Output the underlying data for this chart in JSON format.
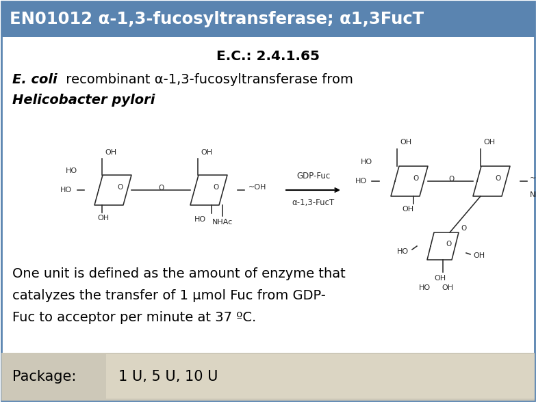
{
  "title": "EN01012 α-1,3-fucosyltransferase; α1,3FucT",
  "title_bg": "#5a84b0",
  "title_color": "#ffffff",
  "ec_number": "E.C.: 2.4.1.65",
  "description_italic": "E. coli",
  "description_rest": " recombinant α-1,3-fucosyltransferase from",
  "description_line2": "Helicobacter pylori",
  "unit_line1": "One unit is defined as the amount of enzyme that",
  "unit_line2": "catalyzes the transfer of 1 μmol Fuc from GDP-",
  "unit_line3": "Fuc to acceptor per minute at 37 ºC.",
  "package_label": "Package:",
  "package_value": "1 U, 5 U, 10 U",
  "package_bg": "#cdc8b8",
  "package_value_bg": "#dbd5c3",
  "bg_color": "#ffffff",
  "border_color": "#5a84b0",
  "fig_width": 7.83,
  "fig_height": 5.88
}
